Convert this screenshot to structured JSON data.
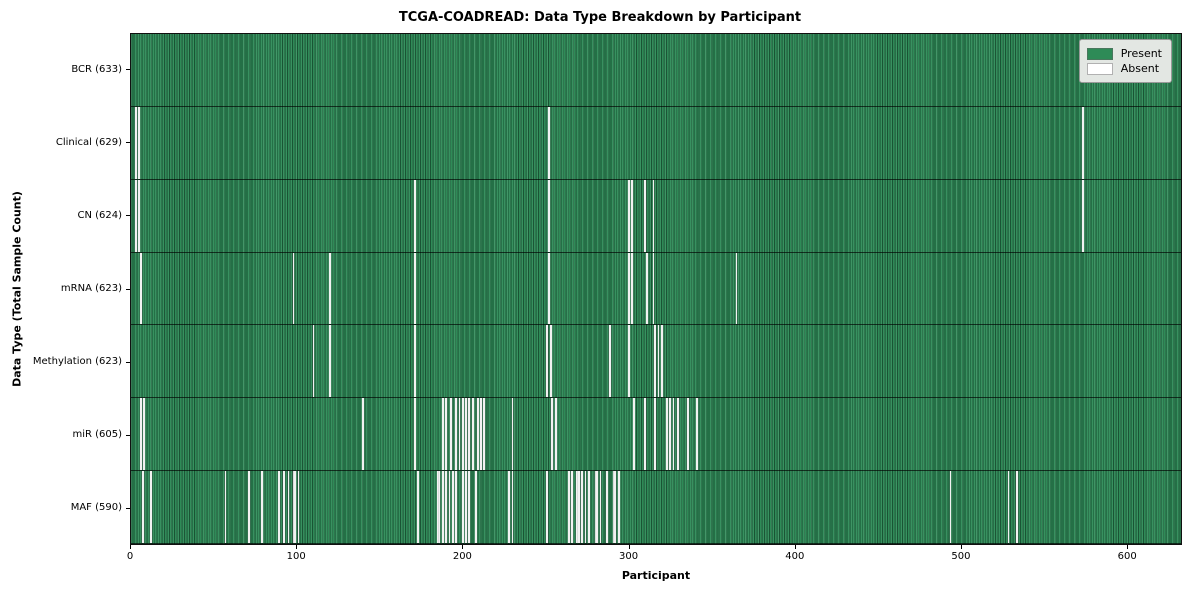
{
  "chart_data": {
    "type": "heatmap",
    "title": "TCGA-COADREAD: Data Type Breakdown by Participant",
    "xlabel": "Participant",
    "ylabel": "Data Type (Total Sample Count)",
    "n_participants": 633,
    "x_domain": [
      0,
      633
    ],
    "x_ticks": [
      0,
      100,
      200,
      300,
      400,
      500,
      600
    ],
    "grid": false,
    "legend": {
      "position": "upper right",
      "entries": [
        {
          "label": "Present",
          "color": "#2e8b57"
        },
        {
          "label": "Absent",
          "color": "#ffffff"
        }
      ]
    },
    "colors": {
      "present": "#2e8b57",
      "absent_line": "#f2f2f2",
      "bar_edge": "#0d2b1b",
      "legend_bg": "#e3e7e3"
    },
    "rows": [
      {
        "data_type": "BCR",
        "label": "BCR (633)",
        "count": 633,
        "absent_participants": []
      },
      {
        "data_type": "Clinical",
        "label": "Clinical (629)",
        "count": 629,
        "absent_participants": [
          3,
          5,
          252,
          574
        ]
      },
      {
        "data_type": "CN",
        "label": "CN (624)",
        "count": 624,
        "absent_participants": [
          3,
          5,
          171,
          252,
          300,
          302,
          310,
          315,
          574
        ]
      },
      {
        "data_type": "mRNA",
        "label": "mRNA (623)",
        "count": 623,
        "absent_participants": [
          6,
          98,
          120,
          171,
          252,
          300,
          302,
          311,
          315,
          365
        ]
      },
      {
        "data_type": "Methylation",
        "label": "Methylation (623)",
        "count": 623,
        "absent_participants": [
          110,
          120,
          171,
          251,
          253,
          289,
          300,
          316,
          318,
          320
        ]
      },
      {
        "data_type": "miR",
        "label": "miR (605)",
        "count": 605,
        "absent_participants": [
          6,
          8,
          140,
          171,
          188,
          190,
          193,
          196,
          198,
          200,
          202,
          204,
          206,
          209,
          211,
          213,
          230,
          254,
          256,
          303,
          310,
          316,
          323,
          325,
          327,
          330,
          336,
          341
        ]
      },
      {
        "data_type": "MAF",
        "label": "MAF (590)",
        "count": 590,
        "absent_participants": [
          7,
          12,
          57,
          71,
          79,
          89,
          92,
          95,
          98,
          99,
          101,
          173,
          185,
          186,
          188,
          190,
          192,
          194,
          196,
          200,
          202,
          204,
          208,
          228,
          230,
          251,
          264,
          266,
          269,
          270,
          272,
          274,
          276,
          280,
          281,
          283,
          287,
          291,
          292,
          294,
          494,
          529,
          534
        ]
      }
    ]
  }
}
